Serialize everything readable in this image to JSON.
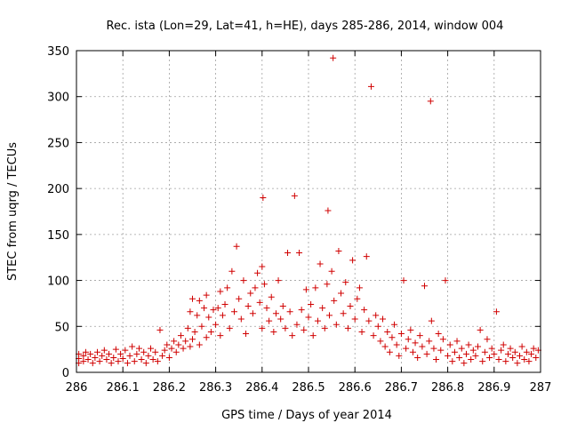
{
  "chart_data": {
    "type": "scatter",
    "title": "Rec. ista (Lon=29, Lat=41, h=HE), days 285-286, 2014, window 004",
    "xlabel": "GPS time / Days of year 2014",
    "ylabel": "STEC from uqrg / TECUs",
    "xlim": [
      286,
      287
    ],
    "ylim": [
      0,
      350
    ],
    "xticks": [
      286,
      286.1,
      286.2,
      286.3,
      286.4,
      286.5,
      286.6,
      286.7,
      286.8,
      286.9,
      287
    ],
    "xtick_labels": [
      "286",
      "286.1",
      "286.2",
      "286.3",
      "286.4",
      "286.5",
      "286.6",
      "286.7",
      "286.8",
      "286.9",
      "287"
    ],
    "yticks": [
      0,
      50,
      100,
      150,
      200,
      250,
      300,
      350
    ],
    "ytick_labels": [
      "0",
      "50",
      "100",
      "150",
      "200",
      "250",
      "300",
      "350"
    ],
    "grid": true,
    "marker": "+",
    "color": "#d00000",
    "series": [
      {
        "name": "STEC",
        "points": [
          [
            286.005,
            10
          ],
          [
            286.005,
            15
          ],
          [
            286.005,
            20
          ],
          [
            286.015,
            12
          ],
          [
            286.015,
            18
          ],
          [
            286.02,
            22
          ],
          [
            286.025,
            14
          ],
          [
            286.03,
            20
          ],
          [
            286.035,
            10
          ],
          [
            286.04,
            16
          ],
          [
            286.045,
            22
          ],
          [
            286.05,
            12
          ],
          [
            286.055,
            18
          ],
          [
            286.06,
            24
          ],
          [
            286.065,
            14
          ],
          [
            286.07,
            20
          ],
          [
            286.075,
            10
          ],
          [
            286.08,
            16
          ],
          [
            286.085,
            25
          ],
          [
            286.09,
            12
          ],
          [
            286.095,
            20
          ],
          [
            286.1,
            15
          ],
          [
            286.105,
            24
          ],
          [
            286.11,
            10
          ],
          [
            286.115,
            18
          ],
          [
            286.12,
            28
          ],
          [
            286.125,
            12
          ],
          [
            286.13,
            20
          ],
          [
            286.135,
            26
          ],
          [
            286.14,
            14
          ],
          [
            286.145,
            22
          ],
          [
            286.15,
            10
          ],
          [
            286.155,
            18
          ],
          [
            286.16,
            26
          ],
          [
            286.165,
            14
          ],
          [
            286.17,
            22
          ],
          [
            286.175,
            12
          ],
          [
            286.18,
            46
          ],
          [
            286.185,
            18
          ],
          [
            286.19,
            24
          ],
          [
            286.195,
            30
          ],
          [
            286.2,
            16
          ],
          [
            286.205,
            26
          ],
          [
            286.21,
            34
          ],
          [
            286.215,
            22
          ],
          [
            286.22,
            30
          ],
          [
            286.225,
            40
          ],
          [
            286.23,
            26
          ],
          [
            286.235,
            34
          ],
          [
            286.24,
            48
          ],
          [
            286.245,
            28
          ],
          [
            286.245,
            66
          ],
          [
            286.25,
            36
          ],
          [
            286.25,
            80
          ],
          [
            286.255,
            44
          ],
          [
            286.26,
            62
          ],
          [
            286.265,
            30
          ],
          [
            286.265,
            78
          ],
          [
            286.27,
            50
          ],
          [
            286.275,
            70
          ],
          [
            286.28,
            84
          ],
          [
            286.28,
            38
          ],
          [
            286.285,
            60
          ],
          [
            286.29,
            44
          ],
          [
            286.295,
            68
          ],
          [
            286.3,
            52
          ],
          [
            286.305,
            70
          ],
          [
            286.31,
            40
          ],
          [
            286.31,
            88
          ],
          [
            286.315,
            62
          ],
          [
            286.32,
            74
          ],
          [
            286.325,
            92
          ],
          [
            286.33,
            48
          ],
          [
            286.335,
            110
          ],
          [
            286.34,
            66
          ],
          [
            286.345,
            137
          ],
          [
            286.35,
            80
          ],
          [
            286.355,
            58
          ],
          [
            286.36,
            100
          ],
          [
            286.365,
            42
          ],
          [
            286.37,
            72
          ],
          [
            286.375,
            86
          ],
          [
            286.38,
            64
          ],
          [
            286.385,
            92
          ],
          [
            286.39,
            108
          ],
          [
            286.395,
            76
          ],
          [
            286.4,
            48
          ],
          [
            286.4,
            115
          ],
          [
            286.402,
            190
          ],
          [
            286.405,
            96
          ],
          [
            286.41,
            70
          ],
          [
            286.415,
            56
          ],
          [
            286.42,
            82
          ],
          [
            286.425,
            44
          ],
          [
            286.43,
            64
          ],
          [
            286.435,
            100
          ],
          [
            286.44,
            58
          ],
          [
            286.445,
            72
          ],
          [
            286.45,
            48
          ],
          [
            286.455,
            130
          ],
          [
            286.46,
            66
          ],
          [
            286.465,
            40
          ],
          [
            286.47,
            192
          ],
          [
            286.475,
            52
          ],
          [
            286.48,
            130
          ],
          [
            286.485,
            68
          ],
          [
            286.49,
            46
          ],
          [
            286.495,
            90
          ],
          [
            286.5,
            60
          ],
          [
            286.505,
            74
          ],
          [
            286.51,
            40
          ],
          [
            286.515,
            92
          ],
          [
            286.52,
            56
          ],
          [
            286.525,
            118
          ],
          [
            286.53,
            70
          ],
          [
            286.535,
            48
          ],
          [
            286.54,
            96
          ],
          [
            286.542,
            176
          ],
          [
            286.545,
            62
          ],
          [
            286.55,
            110
          ],
          [
            286.553,
            342
          ],
          [
            286.555,
            78
          ],
          [
            286.56,
            52
          ],
          [
            286.565,
            132
          ],
          [
            286.57,
            86
          ],
          [
            286.575,
            64
          ],
          [
            286.58,
            98
          ],
          [
            286.585,
            48
          ],
          [
            286.59,
            72
          ],
          [
            286.595,
            122
          ],
          [
            286.6,
            58
          ],
          [
            286.605,
            80
          ],
          [
            286.61,
            92
          ],
          [
            286.615,
            44
          ],
          [
            286.62,
            68
          ],
          [
            286.625,
            126
          ],
          [
            286.63,
            56
          ],
          [
            286.635,
            311
          ],
          [
            286.64,
            40
          ],
          [
            286.645,
            62
          ],
          [
            286.65,
            50
          ],
          [
            286.655,
            34
          ],
          [
            286.66,
            58
          ],
          [
            286.665,
            28
          ],
          [
            286.67,
            44
          ],
          [
            286.675,
            22
          ],
          [
            286.68,
            38
          ],
          [
            286.685,
            52
          ],
          [
            286.69,
            30
          ],
          [
            286.695,
            18
          ],
          [
            286.7,
            42
          ],
          [
            286.705,
            100
          ],
          [
            286.71,
            26
          ],
          [
            286.715,
            36
          ],
          [
            286.72,
            46
          ],
          [
            286.725,
            22
          ],
          [
            286.73,
            32
          ],
          [
            286.735,
            16
          ],
          [
            286.74,
            40
          ],
          [
            286.745,
            28
          ],
          [
            286.75,
            94
          ],
          [
            286.755,
            20
          ],
          [
            286.76,
            34
          ],
          [
            286.763,
            295
          ],
          [
            286.765,
            56
          ],
          [
            286.77,
            26
          ],
          [
            286.775,
            14
          ],
          [
            286.78,
            42
          ],
          [
            286.785,
            24
          ],
          [
            286.79,
            36
          ],
          [
            286.795,
            100
          ],
          [
            286.8,
            18
          ],
          [
            286.805,
            30
          ],
          [
            286.81,
            12
          ],
          [
            286.815,
            22
          ],
          [
            286.82,
            34
          ],
          [
            286.825,
            16
          ],
          [
            286.83,
            26
          ],
          [
            286.835,
            10
          ],
          [
            286.84,
            20
          ],
          [
            286.845,
            30
          ],
          [
            286.85,
            14
          ],
          [
            286.855,
            24
          ],
          [
            286.86,
            18
          ],
          [
            286.865,
            28
          ],
          [
            286.87,
            46
          ],
          [
            286.875,
            12
          ],
          [
            286.88,
            22
          ],
          [
            286.885,
            36
          ],
          [
            286.89,
            16
          ],
          [
            286.895,
            26
          ],
          [
            286.9,
            20
          ],
          [
            286.905,
            66
          ],
          [
            286.91,
            14
          ],
          [
            286.915,
            24
          ],
          [
            286.92,
            30
          ],
          [
            286.925,
            12
          ],
          [
            286.93,
            20
          ],
          [
            286.935,
            26
          ],
          [
            286.94,
            16
          ],
          [
            286.945,
            22
          ],
          [
            286.95,
            10
          ],
          [
            286.955,
            18
          ],
          [
            286.96,
            28
          ],
          [
            286.965,
            14
          ],
          [
            286.97,
            22
          ],
          [
            286.975,
            12
          ],
          [
            286.98,
            20
          ],
          [
            286.985,
            26
          ],
          [
            286.99,
            16
          ],
          [
            286.995,
            24
          ]
        ]
      }
    ]
  }
}
